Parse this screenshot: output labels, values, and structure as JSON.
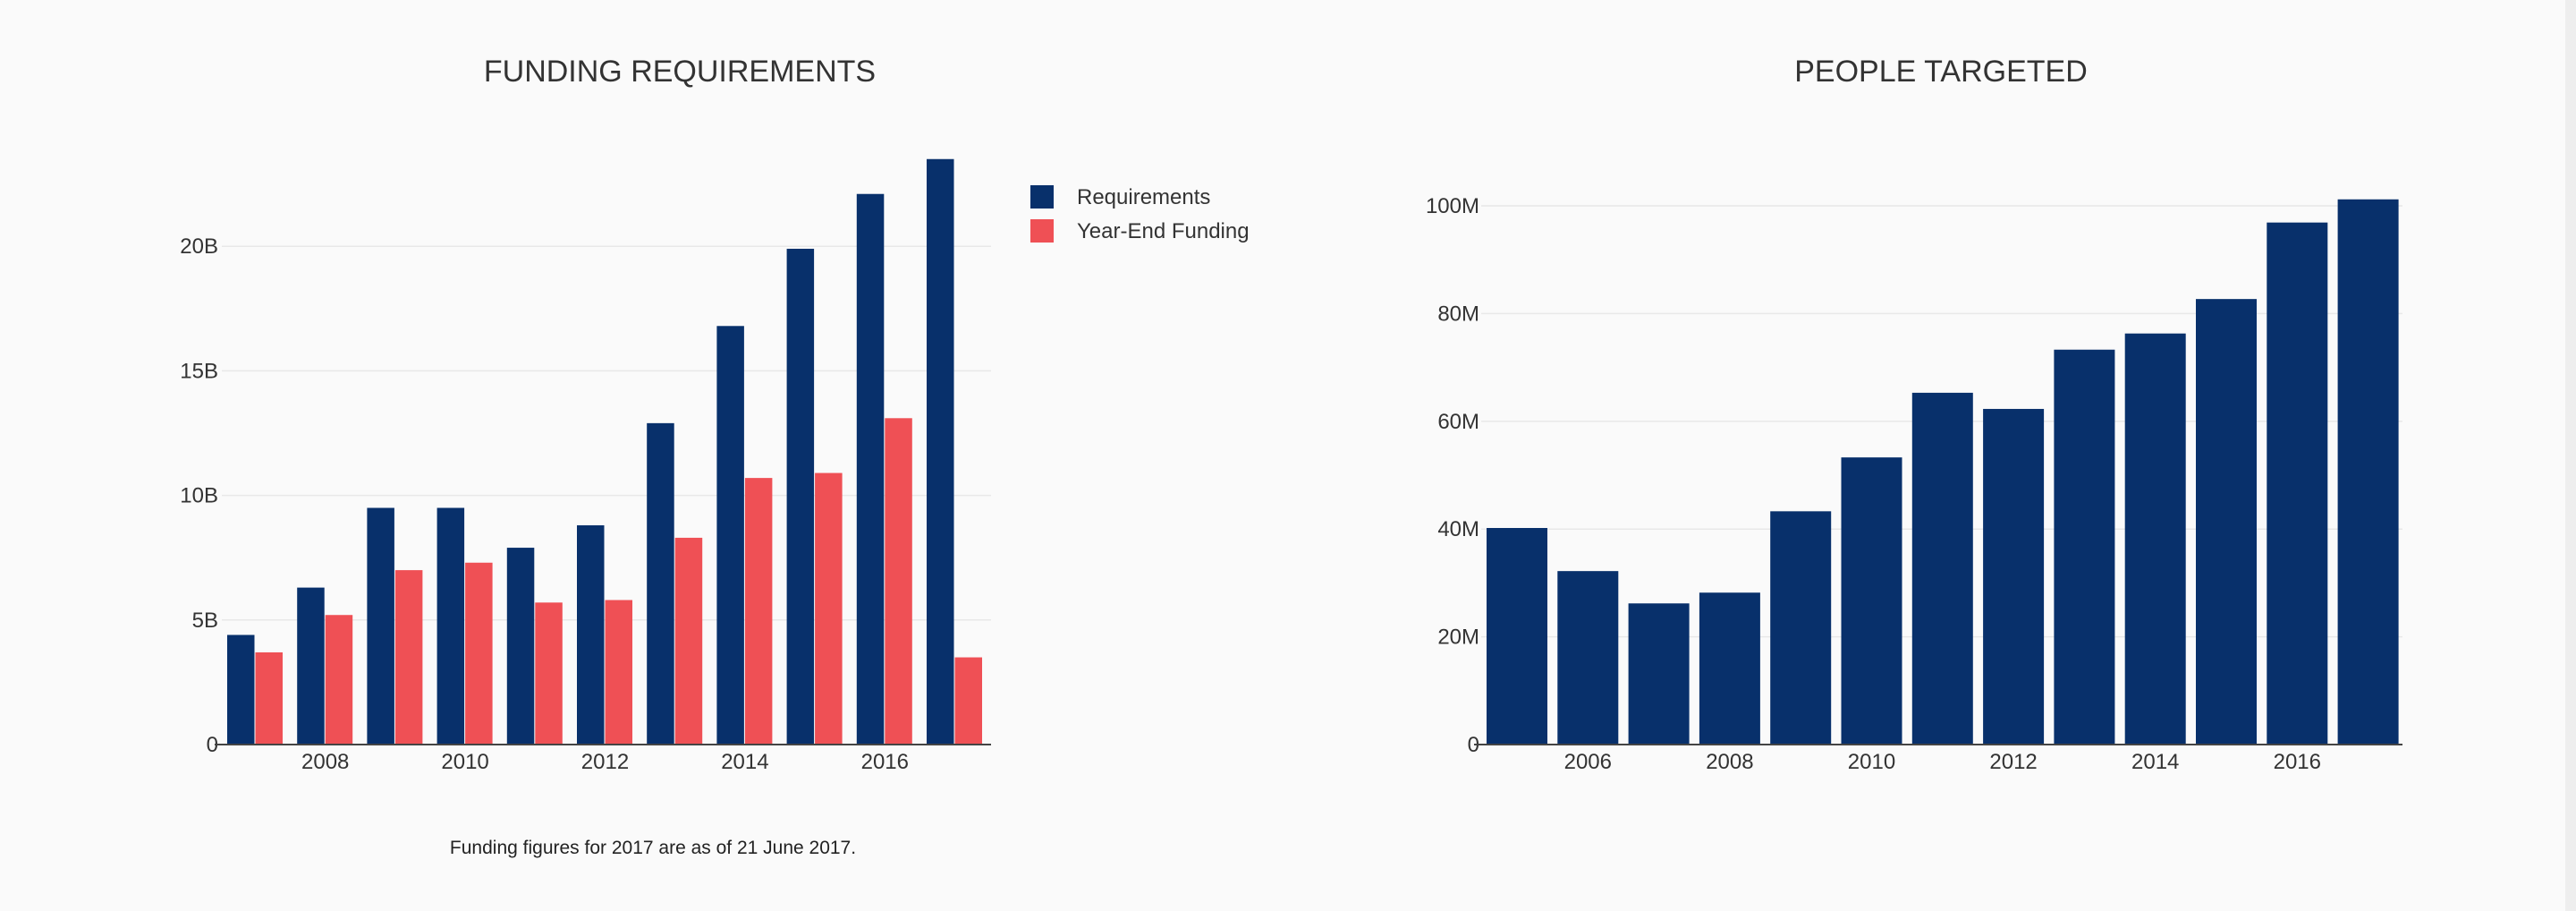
{
  "colors": {
    "requirements": "#08306b",
    "funding": "#ef5055",
    "background": "#fafafa"
  },
  "chart_data": [
    {
      "type": "bar",
      "title": "FUNDING REQUIREMENTS",
      "x": [
        2007,
        2008,
        2009,
        2010,
        2011,
        2012,
        2013,
        2014,
        2015,
        2016,
        2017
      ],
      "x_tick_labels": [
        "2008",
        "2010",
        "2012",
        "2014",
        "2016"
      ],
      "y_tick_labels": [
        "0",
        "5B",
        "10B",
        "15B",
        "20B"
      ],
      "ylim": [
        0,
        25
      ],
      "y_unit": "B",
      "grid": true,
      "legend_position": "top-right",
      "series": [
        {
          "name": "Requirements",
          "color": "#08306b",
          "values": [
            4.4,
            6.3,
            9.5,
            9.5,
            7.9,
            8.8,
            12.9,
            16.8,
            19.9,
            22.1,
            23.5
          ]
        },
        {
          "name": "Year-End Funding",
          "color": "#ef5055",
          "values": [
            3.7,
            5.2,
            7.0,
            7.3,
            5.7,
            5.8,
            8.3,
            10.7,
            10.9,
            13.1,
            3.5
          ]
        }
      ],
      "note": "Funding figures for 2017 are as of 21 June 2017."
    },
    {
      "type": "bar",
      "title": "PEOPLE TARGETED",
      "x": [
        2005,
        2006,
        2007,
        2008,
        2009,
        2010,
        2011,
        2012,
        2013,
        2014,
        2015,
        2016,
        2017
      ],
      "x_tick_labels": [
        "2006",
        "2008",
        "2010",
        "2012",
        "2014",
        "2016"
      ],
      "y_tick_labels": [
        "0",
        "20M",
        "40M",
        "60M",
        "80M",
        "100M"
      ],
      "ylim": [
        0,
        106
      ],
      "y_unit": "M",
      "grid": true,
      "series": [
        {
          "color": "#08306b",
          "values": [
            40.2,
            32.2,
            26.2,
            28.2,
            43.3,
            53.3,
            65.3,
            62.3,
            73.3,
            76.3,
            82.7,
            96.9,
            101.2
          ]
        }
      ]
    }
  ]
}
